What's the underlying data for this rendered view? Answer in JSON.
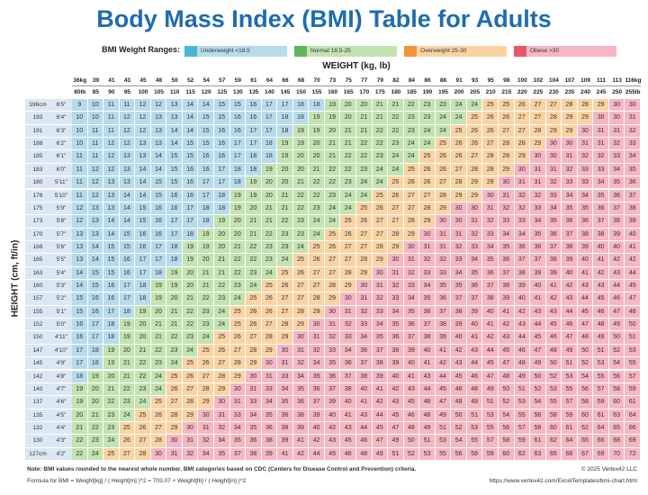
{
  "title": "Body Mass Index (BMI) Table for Adults",
  "legend": {
    "title": "BMI Weight Ranges:",
    "items": [
      {
        "label": "Underweight <18.5",
        "max": 18.5,
        "color": "#49b6d6",
        "cell_color": "#b6dcec"
      },
      {
        "label": "Normal 18.5-25",
        "min": 18.5,
        "max": 25,
        "color": "#5cb85c",
        "cell_color": "#c3e3b0"
      },
      {
        "label": "Overweight 25-30",
        "min": 25,
        "max": 30,
        "color": "#f0953a",
        "cell_color": "#fbd3a3"
      },
      {
        "label": "Obese >30",
        "min": 30,
        "color": "#e8566c",
        "cell_color": "#f7b6c2"
      }
    ]
  },
  "weight_label": "WEIGHT (kg, lb)",
  "height_label": "HEIGHT (cm, ft/in)",
  "table": {
    "weight_kg": [
      "36kg",
      "39",
      "41",
      "43",
      "45",
      "48",
      "50",
      "52",
      "54",
      "57",
      "59",
      "61",
      "64",
      "66",
      "68",
      "70",
      "73",
      "75",
      "77",
      "79",
      "82",
      "84",
      "86",
      "88",
      "91",
      "93",
      "95",
      "98",
      "100",
      "102",
      "104",
      "107",
      "109",
      "111",
      "113",
      "116kg"
    ],
    "weight_lb": [
      "80lb",
      "85",
      "90",
      "95",
      "100",
      "105",
      "110",
      "115",
      "120",
      "125",
      "130",
      "135",
      "140",
      "145",
      "150",
      "155",
      "160",
      "165",
      "170",
      "175",
      "180",
      "185",
      "190",
      "195",
      "200",
      "205",
      "210",
      "215",
      "220",
      "225",
      "230",
      "235",
      "240",
      "245",
      "250",
      "255lb"
    ],
    "rows": [
      {
        "cm": "196cm",
        "ft_in": "6'5\"",
        "values": [
          9,
          10,
          11,
          11,
          12,
          12,
          13,
          14,
          14,
          15,
          15,
          16,
          17,
          17,
          18,
          18,
          19,
          20,
          20,
          21,
          21,
          22,
          23,
          23,
          24,
          24,
          25,
          25,
          26,
          27,
          27,
          28,
          28,
          29,
          30,
          30
        ]
      },
      {
        "cm": "193",
        "ft_in": "6'4\"",
        "values": [
          10,
          10,
          11,
          12,
          12,
          13,
          13,
          14,
          15,
          15,
          16,
          16,
          17,
          18,
          18,
          19,
          19,
          20,
          21,
          21,
          22,
          23,
          23,
          24,
          24,
          25,
          26,
          26,
          27,
          27,
          28,
          29,
          29,
          30,
          30,
          31
        ]
      },
      {
        "cm": "191",
        "ft_in": "6'3\"",
        "values": [
          10,
          11,
          11,
          12,
          12,
          13,
          14,
          14,
          15,
          16,
          16,
          17,
          17,
          18,
          19,
          19,
          20,
          21,
          21,
          22,
          22,
          23,
          24,
          24,
          25,
          26,
          26,
          27,
          27,
          28,
          29,
          29,
          30,
          31,
          31,
          32
        ]
      },
      {
        "cm": "188",
        "ft_in": "6'2\"",
        "values": [
          10,
          11,
          12,
          12,
          13,
          13,
          14,
          15,
          15,
          16,
          17,
          17,
          18,
          19,
          19,
          20,
          21,
          21,
          22,
          22,
          23,
          24,
          24,
          25,
          26,
          26,
          27,
          28,
          28,
          29,
          30,
          30,
          31,
          31,
          32,
          33
        ]
      },
      {
        "cm": "185",
        "ft_in": "6'1\"",
        "values": [
          11,
          11,
          12,
          13,
          13,
          14,
          15,
          15,
          16,
          16,
          17,
          18,
          18,
          19,
          20,
          20,
          21,
          22,
          22,
          23,
          24,
          24,
          25,
          26,
          26,
          27,
          28,
          28,
          29,
          30,
          30,
          31,
          32,
          32,
          33,
          34
        ]
      },
      {
        "cm": "183",
        "ft_in": "6'0\"",
        "values": [
          11,
          12,
          12,
          13,
          14,
          14,
          15,
          16,
          16,
          17,
          18,
          18,
          19,
          20,
          20,
          21,
          22,
          22,
          23,
          24,
          24,
          25,
          26,
          26,
          27,
          28,
          28,
          29,
          30,
          31,
          31,
          32,
          33,
          33,
          34,
          35
        ]
      },
      {
        "cm": "180",
        "ft_in": "5'11\"",
        "values": [
          11,
          12,
          13,
          13,
          14,
          15,
          15,
          16,
          17,
          17,
          18,
          19,
          20,
          20,
          21,
          22,
          22,
          23,
          24,
          24,
          25,
          26,
          26,
          27,
          28,
          29,
          29,
          30,
          31,
          31,
          32,
          33,
          33,
          34,
          35,
          36
        ]
      },
      {
        "cm": "178",
        "ft_in": "5'10\"",
        "values": [
          11,
          12,
          13,
          14,
          14,
          15,
          16,
          16,
          17,
          18,
          19,
          19,
          20,
          21,
          22,
          22,
          23,
          24,
          24,
          25,
          26,
          27,
          27,
          28,
          29,
          29,
          30,
          31,
          32,
          32,
          33,
          34,
          34,
          35,
          36,
          37
        ]
      },
      {
        "cm": "175",
        "ft_in": "5'9\"",
        "values": [
          12,
          13,
          13,
          14,
          15,
          16,
          16,
          17,
          18,
          18,
          19,
          20,
          21,
          21,
          22,
          23,
          24,
          24,
          25,
          26,
          27,
          27,
          28,
          29,
          30,
          30,
          31,
          32,
          32,
          33,
          34,
          35,
          35,
          36,
          37,
          38
        ]
      },
      {
        "cm": "173",
        "ft_in": "5'8\"",
        "values": [
          12,
          13,
          14,
          14,
          15,
          16,
          17,
          17,
          18,
          19,
          20,
          21,
          21,
          22,
          23,
          24,
          24,
          25,
          26,
          27,
          27,
          28,
          29,
          30,
          30,
          31,
          32,
          33,
          33,
          34,
          35,
          36,
          36,
          37,
          38,
          39
        ]
      },
      {
        "cm": "170",
        "ft_in": "5'7\"",
        "values": [
          13,
          13,
          14,
          15,
          16,
          16,
          17,
          18,
          19,
          20,
          20,
          21,
          22,
          23,
          23,
          24,
          25,
          26,
          27,
          27,
          28,
          29,
          30,
          31,
          31,
          32,
          33,
          34,
          34,
          35,
          36,
          37,
          38,
          38,
          39,
          40
        ]
      },
      {
        "cm": "168",
        "ft_in": "5'6\"",
        "values": [
          13,
          14,
          15,
          15,
          16,
          17,
          18,
          19,
          19,
          20,
          21,
          22,
          23,
          23,
          24,
          25,
          26,
          27,
          27,
          28,
          29,
          30,
          31,
          31,
          32,
          33,
          34,
          35,
          36,
          36,
          37,
          38,
          39,
          40,
          40,
          41
        ]
      },
      {
        "cm": "165",
        "ft_in": "5'5\"",
        "values": [
          13,
          14,
          15,
          16,
          17,
          17,
          18,
          19,
          20,
          21,
          22,
          22,
          23,
          24,
          25,
          26,
          27,
          27,
          28,
          29,
          30,
          31,
          32,
          32,
          33,
          34,
          35,
          36,
          37,
          37,
          38,
          39,
          40,
          41,
          42,
          42
        ]
      },
      {
        "cm": "163",
        "ft_in": "5'4\"",
        "values": [
          14,
          15,
          15,
          16,
          17,
          18,
          19,
          20,
          21,
          21,
          22,
          23,
          24,
          25,
          26,
          27,
          27,
          28,
          29,
          30,
          31,
          32,
          33,
          33,
          34,
          35,
          36,
          37,
          38,
          39,
          39,
          40,
          41,
          42,
          43,
          44
        ]
      },
      {
        "cm": "160",
        "ft_in": "5'3\"",
        "values": [
          14,
          15,
          16,
          17,
          18,
          19,
          19,
          20,
          21,
          22,
          23,
          24,
          25,
          26,
          27,
          27,
          28,
          29,
          30,
          31,
          32,
          33,
          34,
          35,
          35,
          36,
          37,
          38,
          39,
          40,
          41,
          42,
          43,
          43,
          44,
          45
        ]
      },
      {
        "cm": "157",
        "ft_in": "5'2\"",
        "values": [
          15,
          16,
          16,
          17,
          18,
          19,
          20,
          21,
          22,
          23,
          24,
          25,
          26,
          27,
          27,
          28,
          29,
          30,
          31,
          32,
          33,
          34,
          35,
          36,
          37,
          37,
          38,
          39,
          40,
          41,
          42,
          43,
          44,
          45,
          46,
          47
        ]
      },
      {
        "cm": "155",
        "ft_in": "5'1\"",
        "values": [
          15,
          16,
          17,
          18,
          19,
          20,
          21,
          22,
          23,
          24,
          25,
          26,
          26,
          27,
          28,
          29,
          30,
          31,
          32,
          33,
          34,
          35,
          36,
          37,
          38,
          39,
          40,
          41,
          42,
          43,
          43,
          44,
          45,
          46,
          47,
          48
        ]
      },
      {
        "cm": "152",
        "ft_in": "5'0\"",
        "values": [
          16,
          17,
          18,
          19,
          20,
          21,
          21,
          22,
          23,
          24,
          25,
          26,
          27,
          28,
          29,
          30,
          31,
          32,
          33,
          34,
          35,
          36,
          37,
          38,
          39,
          40,
          41,
          42,
          43,
          44,
          45,
          46,
          47,
          48,
          49,
          50
        ]
      },
      {
        "cm": "150",
        "ft_in": "4'11\"",
        "values": [
          16,
          17,
          18,
          19,
          20,
          21,
          22,
          23,
          24,
          25,
          26,
          27,
          28,
          29,
          30,
          31,
          32,
          33,
          34,
          35,
          36,
          37,
          38,
          39,
          40,
          41,
          42,
          43,
          44,
          45,
          46,
          47,
          48,
          49,
          50,
          51
        ]
      },
      {
        "cm": "147",
        "ft_in": "4'10\"",
        "values": [
          17,
          18,
          19,
          20,
          21,
          22,
          23,
          24,
          25,
          26,
          27,
          28,
          29,
          30,
          31,
          32,
          33,
          34,
          36,
          37,
          38,
          39,
          40,
          41,
          42,
          43,
          44,
          45,
          46,
          47,
          48,
          49,
          50,
          51,
          52,
          53
        ]
      },
      {
        "cm": "145",
        "ft_in": "4'9\"",
        "values": [
          17,
          18,
          19,
          21,
          22,
          23,
          24,
          25,
          26,
          27,
          28,
          29,
          30,
          31,
          32,
          34,
          35,
          36,
          37,
          38,
          39,
          40,
          41,
          42,
          43,
          44,
          45,
          47,
          48,
          49,
          50,
          51,
          52,
          53,
          54,
          55
        ]
      },
      {
        "cm": "142",
        "ft_in": "4'8\"",
        "values": [
          18,
          19,
          20,
          21,
          22,
          24,
          25,
          26,
          27,
          28,
          29,
          30,
          31,
          33,
          34,
          35,
          36,
          37,
          38,
          39,
          40,
          41,
          43,
          44,
          45,
          46,
          47,
          48,
          49,
          50,
          52,
          53,
          54,
          55,
          56,
          57
        ]
      },
      {
        "cm": "140",
        "ft_in": "4'7\"",
        "values": [
          19,
          20,
          21,
          22,
          23,
          24,
          26,
          27,
          28,
          29,
          30,
          31,
          33,
          34,
          35,
          36,
          37,
          38,
          40,
          41,
          42,
          43,
          44,
          45,
          46,
          48,
          49,
          50,
          51,
          52,
          53,
          55,
          56,
          57,
          58,
          59
        ]
      },
      {
        "cm": "137",
        "ft_in": "4'6\"",
        "values": [
          19,
          20,
          22,
          23,
          24,
          25,
          27,
          28,
          29,
          30,
          31,
          33,
          34,
          35,
          36,
          37,
          39,
          40,
          41,
          42,
          43,
          45,
          46,
          47,
          48,
          49,
          51,
          52,
          53,
          54,
          55,
          57,
          58,
          59,
          60,
          61
        ]
      },
      {
        "cm": "135",
        "ft_in": "4'5\"",
        "values": [
          20,
          21,
          23,
          24,
          25,
          26,
          28,
          29,
          30,
          31,
          33,
          34,
          35,
          36,
          38,
          39,
          40,
          41,
          43,
          44,
          45,
          46,
          48,
          49,
          50,
          51,
          53,
          54,
          55,
          56,
          58,
          59,
          60,
          61,
          63,
          64
        ]
      },
      {
        "cm": "132",
        "ft_in": "4'4\"",
        "values": [
          21,
          22,
          23,
          25,
          26,
          27,
          29,
          30,
          31,
          32,
          34,
          35,
          36,
          38,
          39,
          40,
          42,
          43,
          44,
          45,
          47,
          48,
          49,
          51,
          52,
          53,
          55,
          56,
          57,
          58,
          60,
          61,
          62,
          64,
          65,
          66
        ]
      },
      {
        "cm": "130",
        "ft_in": "4'3\"",
        "values": [
          22,
          23,
          24,
          26,
          27,
          28,
          30,
          31,
          32,
          34,
          35,
          36,
          38,
          39,
          41,
          42,
          43,
          45,
          46,
          47,
          49,
          50,
          51,
          53,
          54,
          55,
          57,
          58,
          59,
          61,
          62,
          64,
          65,
          66,
          68,
          69
        ]
      },
      {
        "cm": "127cm",
        "ft_in": "4'2\"",
        "values": [
          22,
          24,
          25,
          27,
          28,
          30,
          31,
          32,
          34,
          35,
          37,
          38,
          39,
          41,
          42,
          44,
          45,
          46,
          48,
          49,
          51,
          52,
          53,
          55,
          56,
          58,
          59,
          60,
          62,
          63,
          65,
          66,
          67,
          69,
          70,
          72
        ]
      }
    ]
  },
  "notes": {
    "note": "Note: BMI values rounded to the nearest whole number. BMI categories based on CDC (Centers for Disease Control and Prevention) criteria.",
    "formula": "Formula for BMI = Weight[kg] / ( Height[m] )^2 = 703.07 × Weight[lb] / ( Height[in] )^2",
    "copyright": "© 2025 Vertex42 LLC",
    "url": "https://www.vertex42.com/ExcelTemplates/bmi-chart.html"
  }
}
